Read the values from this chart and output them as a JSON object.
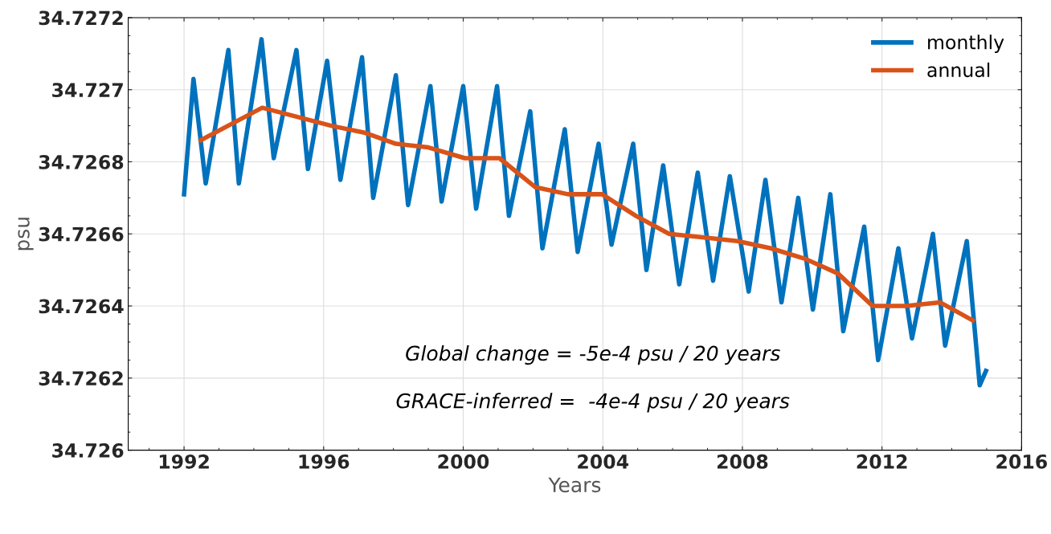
{
  "chart_data": {
    "type": "line",
    "xlabel": "Years",
    "ylabel": "psu",
    "xlim": [
      1990.4,
      2016
    ],
    "xticks": [
      1992,
      1996,
      2000,
      2004,
      2008,
      2012,
      2016
    ],
    "ylim": [
      34.726,
      34.7272
    ],
    "yticks": [
      34.726,
      34.7262,
      34.7264,
      34.7266,
      34.7268,
      34.727,
      34.7272
    ],
    "grid": true,
    "legend": "top right",
    "annotations": [
      "Global change = -5e-4 psu / 20 years",
      "GRACE-inferred =  -4e-4 psu / 20 years"
    ],
    "series": [
      {
        "name": "monthly",
        "color": "#0072bd",
        "x": [
          1992.0,
          1992.27,
          1992.62,
          1993.27,
          1993.57,
          1994.22,
          1994.57,
          1995.22,
          1995.55,
          1996.1,
          1996.48,
          1997.1,
          1997.42,
          1998.07,
          1998.42,
          1999.06,
          1999.38,
          2000.0,
          2000.37,
          2000.97,
          2001.31,
          2001.92,
          2002.27,
          2002.91,
          2003.28,
          2003.88,
          2004.25,
          2004.87,
          2005.25,
          2005.73,
          2006.19,
          2006.72,
          2007.16,
          2007.64,
          2008.18,
          2008.66,
          2009.12,
          2009.6,
          2010.02,
          2010.52,
          2010.89,
          2011.49,
          2011.89,
          2012.47,
          2012.86,
          2013.46,
          2013.81,
          2014.43,
          2014.8,
          2014.98
        ],
        "values": [
          34.72671,
          34.72703,
          34.72674,
          34.72711,
          34.72674,
          34.72714,
          34.72681,
          34.72711,
          34.72678,
          34.72708,
          34.72675,
          34.72709,
          34.7267,
          34.72704,
          34.72668,
          34.72701,
          34.72669,
          34.72701,
          34.72667,
          34.72701,
          34.72665,
          34.72694,
          34.72656,
          34.72689,
          34.72655,
          34.72685,
          34.72657,
          34.72685,
          34.7265,
          34.72679,
          34.72646,
          34.72677,
          34.72647,
          34.72676,
          34.72644,
          34.72675,
          34.72641,
          34.7267,
          34.72639,
          34.72671,
          34.72633,
          34.72662,
          34.72625,
          34.72656,
          34.72631,
          34.7266,
          34.72629,
          34.72658,
          34.72618,
          34.72622
        ]
      },
      {
        "name": "annual",
        "color": "#d95319",
        "x": [
          1992.48,
          1994.24,
          1996.22,
          1997.2,
          1998.07,
          1999.0,
          2000.05,
          2001.04,
          2002.06,
          2003.0,
          2003.98,
          2004.95,
          2005.9,
          2006.91,
          2007.86,
          2008.82,
          2009.82,
          2010.74,
          2011.73,
          2012.7,
          2013.67,
          2014.6
        ],
        "values": [
          34.72686,
          34.72695,
          34.7269,
          34.72688,
          34.72685,
          34.72684,
          34.72681,
          34.72681,
          34.72673,
          34.72671,
          34.72671,
          34.72665,
          34.7266,
          34.72659,
          34.72658,
          34.72656,
          34.72653,
          34.72649,
          34.7264,
          34.7264,
          34.72641,
          34.72636
        ]
      }
    ]
  }
}
